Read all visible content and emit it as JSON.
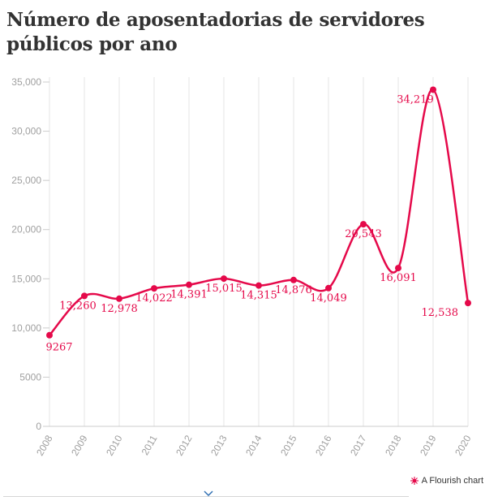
{
  "title": "Número de aposentadorias de servidores públicos por ano",
  "footer": {
    "credit": "A Flourish chart"
  },
  "colors": {
    "line": "#e5094a",
    "grid": "#e6e6e6",
    "tick": "#a0a0a0",
    "title": "#333333"
  },
  "chart_data": {
    "type": "line",
    "title": "Número de aposentadorias de servidores públicos por ano",
    "xlabel": "",
    "ylabel": "",
    "x": [
      "2008",
      "2009",
      "2010",
      "2011",
      "2012",
      "2013",
      "2014",
      "2015",
      "2016",
      "2017",
      "2018",
      "2019",
      "2020"
    ],
    "series": [
      {
        "values": [
          9267,
          13260,
          12978,
          14022,
          14391,
          15015,
          14315,
          14876,
          14049,
          20543,
          16091,
          34219,
          12538
        ],
        "labels": [
          "9267",
          "13,260",
          "12,978",
          "14,022",
          "14,391",
          "15,015",
          "14,315",
          "14,876",
          "14,049",
          "20,543",
          "16,091",
          "34,219",
          "12,538"
        ]
      }
    ],
    "ylim": [
      0,
      35000
    ],
    "y_ticks": [
      0,
      5000,
      10000,
      15000,
      20000,
      25000,
      30000,
      35000
    ],
    "y_tick_labels": [
      "0",
      "5000",
      "10,000",
      "15,000",
      "20,000",
      "25,000",
      "30,000",
      "35,000"
    ],
    "grid": true,
    "curve": "smooth"
  }
}
